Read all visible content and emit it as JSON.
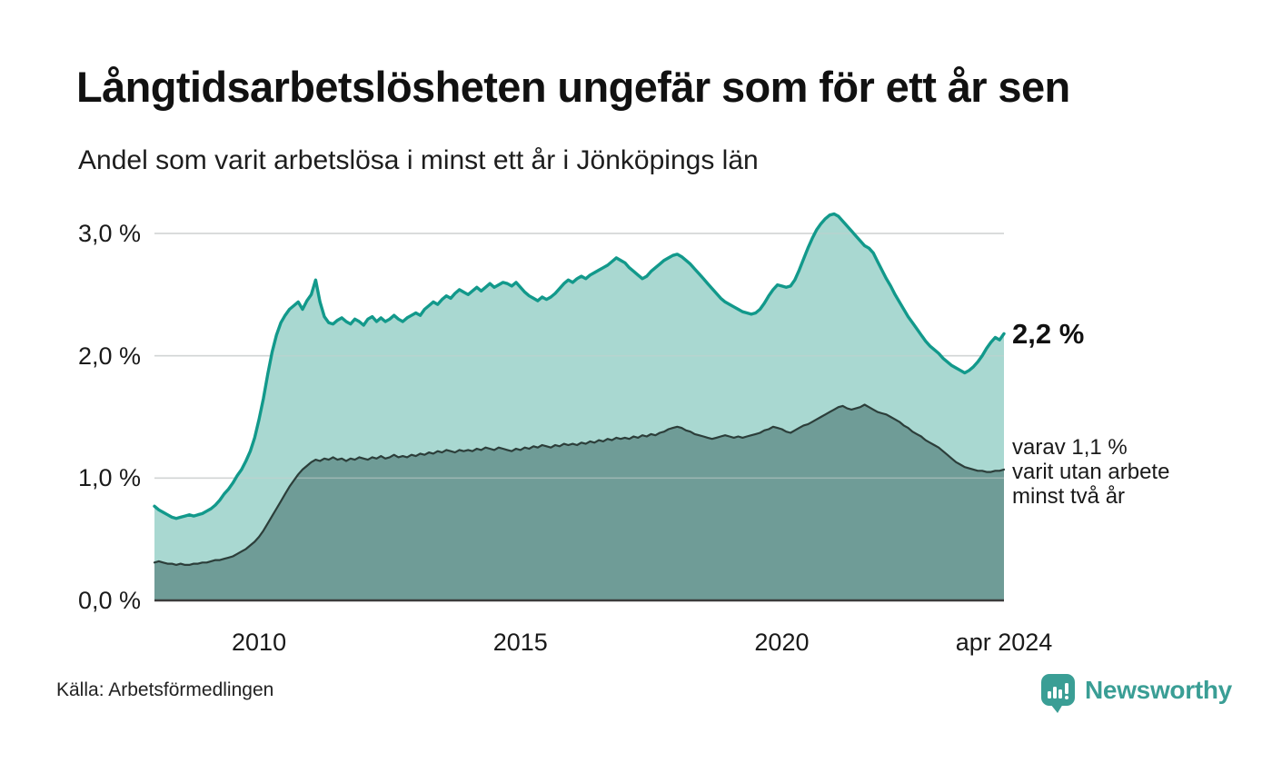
{
  "header": {
    "title": "Långtidsarbetslösheten ungefär som för ett år sen",
    "subtitle": "Andel som varit arbetslösa i minst ett år i Jönköpings län"
  },
  "footer": {
    "source": "Källa: Arbetsförmedlingen",
    "brand": "Newsworthy"
  },
  "colors": {
    "accent_teal_line": "#12998b",
    "light_area_fill": "#a9d8d1",
    "dark_area_fill": "#6f9c97",
    "dark_series_line": "#2c3e3a",
    "gridline": "#dcdcdc",
    "axis_line": "#3b3b3b",
    "text": "#1a1a1a",
    "brand_teal": "#3a9e95"
  },
  "chart_data": {
    "type": "area",
    "title": "Långtidsarbetslösheten ungefär som för ett år sen",
    "subtitle": "Andel som varit arbetslösa i minst ett år i Jönköpings län",
    "x_start": "2008-01",
    "x_end": "2024-04",
    "x_interval": "monthly",
    "ylim": [
      0,
      3.2
    ],
    "grid": true,
    "y_ticks": [
      {
        "label": "0,0 %",
        "value": 0
      },
      {
        "label": "1,0 %",
        "value": 1
      },
      {
        "label": "2,0 %",
        "value": 2
      },
      {
        "label": "3,0 %",
        "value": 3
      }
    ],
    "x_ticks": [
      {
        "label": "2010",
        "month_index": 24
      },
      {
        "label": "2015",
        "month_index": 84
      },
      {
        "label": "2020",
        "month_index": 144
      },
      {
        "label": "apr 2024",
        "month_index": 195
      }
    ],
    "series": [
      {
        "name": "Andel arbetslösa minst ett år",
        "line_color": "#12998b",
        "fill_color": "#a9d8d1",
        "line_width": 3.4,
        "end_label": "2,2 %",
        "values": [
          0.77,
          0.74,
          0.72,
          0.7,
          0.68,
          0.67,
          0.68,
          0.69,
          0.7,
          0.69,
          0.7,
          0.71,
          0.73,
          0.75,
          0.78,
          0.82,
          0.87,
          0.91,
          0.96,
          1.02,
          1.07,
          1.14,
          1.22,
          1.33,
          1.48,
          1.65,
          1.85,
          2.03,
          2.17,
          2.27,
          2.33,
          2.38,
          2.41,
          2.44,
          2.38,
          2.45,
          2.5,
          2.62,
          2.44,
          2.32,
          2.27,
          2.26,
          2.29,
          2.31,
          2.28,
          2.26,
          2.3,
          2.28,
          2.25,
          2.3,
          2.32,
          2.28,
          2.31,
          2.28,
          2.3,
          2.33,
          2.3,
          2.28,
          2.31,
          2.33,
          2.35,
          2.33,
          2.38,
          2.41,
          2.44,
          2.42,
          2.46,
          2.49,
          2.47,
          2.51,
          2.54,
          2.52,
          2.5,
          2.53,
          2.56,
          2.53,
          2.56,
          2.59,
          2.56,
          2.58,
          2.6,
          2.59,
          2.57,
          2.6,
          2.56,
          2.52,
          2.49,
          2.47,
          2.45,
          2.48,
          2.46,
          2.48,
          2.51,
          2.55,
          2.59,
          2.62,
          2.6,
          2.63,
          2.65,
          2.63,
          2.66,
          2.68,
          2.7,
          2.72,
          2.74,
          2.77,
          2.8,
          2.78,
          2.76,
          2.72,
          2.69,
          2.66,
          2.63,
          2.65,
          2.69,
          2.72,
          2.75,
          2.78,
          2.8,
          2.82,
          2.83,
          2.81,
          2.78,
          2.75,
          2.71,
          2.67,
          2.63,
          2.59,
          2.55,
          2.51,
          2.47,
          2.44,
          2.42,
          2.4,
          2.38,
          2.36,
          2.35,
          2.34,
          2.35,
          2.38,
          2.43,
          2.49,
          2.54,
          2.58,
          2.57,
          2.56,
          2.57,
          2.62,
          2.7,
          2.79,
          2.88,
          2.96,
          3.03,
          3.08,
          3.12,
          3.15,
          3.16,
          3.14,
          3.1,
          3.06,
          3.02,
          2.98,
          2.94,
          2.9,
          2.88,
          2.84,
          2.77,
          2.7,
          2.63,
          2.57,
          2.5,
          2.44,
          2.38,
          2.32,
          2.27,
          2.22,
          2.17,
          2.12,
          2.08,
          2.05,
          2.02,
          1.98,
          1.95,
          1.92,
          1.9,
          1.88,
          1.86,
          1.88,
          1.91,
          1.95,
          2.0,
          2.06,
          2.11,
          2.15,
          2.13,
          2.18
        ]
      },
      {
        "name": "Andel arbetslösa minst två år",
        "line_color": "#2c3e3a",
        "fill_color": "#6f9c97",
        "line_width": 2.2,
        "end_label_lines": [
          "varav 1,1 %",
          "varit utan arbete",
          "minst två år"
        ],
        "values": [
          0.31,
          0.32,
          0.31,
          0.3,
          0.3,
          0.29,
          0.3,
          0.29,
          0.29,
          0.3,
          0.3,
          0.31,
          0.31,
          0.32,
          0.33,
          0.33,
          0.34,
          0.35,
          0.36,
          0.38,
          0.4,
          0.42,
          0.45,
          0.48,
          0.52,
          0.57,
          0.63,
          0.69,
          0.75,
          0.81,
          0.87,
          0.93,
          0.98,
          1.03,
          1.07,
          1.1,
          1.13,
          1.15,
          1.14,
          1.16,
          1.15,
          1.17,
          1.15,
          1.16,
          1.14,
          1.16,
          1.15,
          1.17,
          1.16,
          1.15,
          1.17,
          1.16,
          1.18,
          1.16,
          1.17,
          1.19,
          1.17,
          1.18,
          1.17,
          1.19,
          1.18,
          1.2,
          1.19,
          1.21,
          1.2,
          1.22,
          1.21,
          1.23,
          1.22,
          1.21,
          1.23,
          1.22,
          1.23,
          1.22,
          1.24,
          1.23,
          1.25,
          1.24,
          1.23,
          1.25,
          1.24,
          1.23,
          1.22,
          1.24,
          1.23,
          1.25,
          1.24,
          1.26,
          1.25,
          1.27,
          1.26,
          1.25,
          1.27,
          1.26,
          1.28,
          1.27,
          1.28,
          1.27,
          1.29,
          1.28,
          1.3,
          1.29,
          1.31,
          1.3,
          1.32,
          1.31,
          1.33,
          1.32,
          1.33,
          1.32,
          1.34,
          1.33,
          1.35,
          1.34,
          1.36,
          1.35,
          1.37,
          1.38,
          1.4,
          1.41,
          1.42,
          1.41,
          1.39,
          1.38,
          1.36,
          1.35,
          1.34,
          1.33,
          1.32,
          1.33,
          1.34,
          1.35,
          1.34,
          1.33,
          1.34,
          1.33,
          1.34,
          1.35,
          1.36,
          1.37,
          1.39,
          1.4,
          1.42,
          1.41,
          1.4,
          1.38,
          1.37,
          1.39,
          1.41,
          1.43,
          1.44,
          1.46,
          1.48,
          1.5,
          1.52,
          1.54,
          1.56,
          1.58,
          1.59,
          1.57,
          1.56,
          1.57,
          1.58,
          1.6,
          1.58,
          1.56,
          1.54,
          1.53,
          1.52,
          1.5,
          1.48,
          1.46,
          1.43,
          1.41,
          1.38,
          1.36,
          1.34,
          1.31,
          1.29,
          1.27,
          1.25,
          1.22,
          1.19,
          1.16,
          1.13,
          1.11,
          1.09,
          1.08,
          1.07,
          1.06,
          1.06,
          1.05,
          1.05,
          1.06,
          1.06,
          1.07
        ]
      }
    ]
  }
}
